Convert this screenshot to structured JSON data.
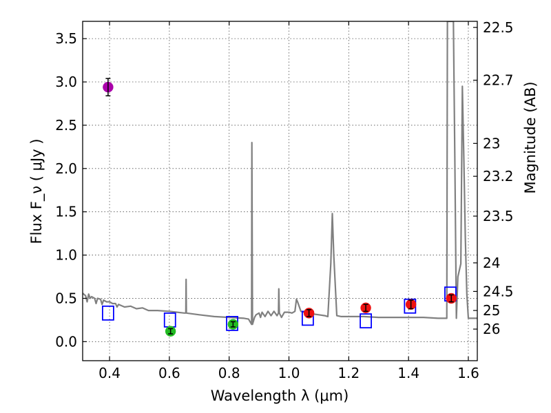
{
  "chart_data": {
    "type": "scatter",
    "title": "",
    "xlabel": "Wavelength  λ (μm)",
    "ylabel": "Flux  F_ν  ( μJy )",
    "y2label": "Magnitude (AB)",
    "xlim": [
      0.31,
      1.63
    ],
    "ylim": [
      -0.22,
      3.7
    ],
    "grid": true,
    "x_ticks": [
      0.4,
      0.6,
      0.8,
      1.0,
      1.2,
      1.4,
      1.6
    ],
    "x_tick_labels": [
      "0.4",
      "0.6",
      "0.8",
      "1.0",
      "1.2",
      "1.4",
      "1.6"
    ],
    "y_ticks": [
      0.0,
      0.5,
      1.0,
      1.5,
      2.0,
      2.5,
      3.0,
      3.5
    ],
    "y_tick_labels": [
      "0.0",
      "0.5",
      "1.0",
      "1.5",
      "2.0",
      "2.5",
      "3.0",
      "3.5"
    ],
    "mag_ticks": [
      {
        "label": "22.5",
        "flux": 3.63
      },
      {
        "label": "22.7",
        "flux": 3.02
      },
      {
        "label": "23",
        "flux": 2.29
      },
      {
        "label": "23.2",
        "flux": 1.91
      },
      {
        "label": "23.5",
        "flux": 1.45
      },
      {
        "label": "24",
        "flux": 0.91
      },
      {
        "label": "24.5",
        "flux": 0.58
      },
      {
        "label": "25",
        "flux": 0.36
      },
      {
        "label": "26",
        "flux": 0.145
      }
    ],
    "series": [
      {
        "name": "model spectrum",
        "kind": "line",
        "color": "#808080",
        "points": [
          [
            0.31,
            0.56
          ],
          [
            0.32,
            0.53
          ],
          [
            0.325,
            0.46
          ],
          [
            0.33,
            0.55
          ],
          [
            0.335,
            0.5
          ],
          [
            0.34,
            0.52
          ],
          [
            0.35,
            0.5
          ],
          [
            0.355,
            0.44
          ],
          [
            0.36,
            0.5
          ],
          [
            0.37,
            0.49
          ],
          [
            0.375,
            0.43
          ],
          [
            0.38,
            0.48
          ],
          [
            0.39,
            0.46
          ],
          [
            0.4,
            0.46
          ],
          [
            0.41,
            0.44
          ],
          [
            0.42,
            0.44
          ],
          [
            0.425,
            0.4
          ],
          [
            0.43,
            0.43
          ],
          [
            0.45,
            0.4
          ],
          [
            0.47,
            0.41
          ],
          [
            0.49,
            0.38
          ],
          [
            0.51,
            0.39
          ],
          [
            0.53,
            0.36
          ],
          [
            0.56,
            0.36
          ],
          [
            0.6,
            0.35
          ],
          [
            0.65,
            0.33
          ],
          [
            0.655,
            0.33
          ],
          [
            0.656,
            0.72
          ],
          [
            0.657,
            0.33
          ],
          [
            0.7,
            0.31
          ],
          [
            0.75,
            0.29
          ],
          [
            0.8,
            0.28
          ],
          [
            0.85,
            0.27
          ],
          [
            0.865,
            0.26
          ],
          [
            0.87,
            0.23
          ],
          [
            0.875,
            0.2
          ],
          [
            0.876,
            2.3
          ],
          [
            0.878,
            0.2
          ],
          [
            0.885,
            0.28
          ],
          [
            0.89,
            0.31
          ],
          [
            0.9,
            0.33
          ],
          [
            0.905,
            0.28
          ],
          [
            0.91,
            0.34
          ],
          [
            0.92,
            0.29
          ],
          [
            0.93,
            0.35
          ],
          [
            0.94,
            0.3
          ],
          [
            0.95,
            0.35
          ],
          [
            0.96,
            0.3
          ],
          [
            0.965,
            0.33
          ],
          [
            0.966,
            0.61
          ],
          [
            0.968,
            0.33
          ],
          [
            0.975,
            0.28
          ],
          [
            0.985,
            0.34
          ],
          [
            1.0,
            0.34
          ],
          [
            1.01,
            0.33
          ],
          [
            1.02,
            0.35
          ],
          [
            1.025,
            0.49
          ],
          [
            1.03,
            0.45
          ],
          [
            1.04,
            0.35
          ],
          [
            1.06,
            0.33
          ],
          [
            1.08,
            0.32
          ],
          [
            1.1,
            0.31
          ],
          [
            1.12,
            0.3
          ],
          [
            1.13,
            0.29
          ],
          [
            1.14,
            0.9
          ],
          [
            1.145,
            1.48
          ],
          [
            1.15,
            1.0
          ],
          [
            1.16,
            0.3
          ],
          [
            1.175,
            0.29
          ],
          [
            1.2,
            0.29
          ],
          [
            1.25,
            0.29
          ],
          [
            1.3,
            0.28
          ],
          [
            1.35,
            0.28
          ],
          [
            1.4,
            0.28
          ],
          [
            1.45,
            0.28
          ],
          [
            1.5,
            0.27
          ],
          [
            1.528,
            0.27
          ],
          [
            1.53,
            3.7
          ],
          [
            1.545,
            3.7
          ],
          [
            1.55,
            3.7
          ],
          [
            1.555,
            2.1
          ],
          [
            1.56,
            0.27
          ],
          [
            1.565,
            0.75
          ],
          [
            1.575,
            0.9
          ],
          [
            1.58,
            2.95
          ],
          [
            1.585,
            2.1
          ],
          [
            1.59,
            1.2
          ],
          [
            1.595,
            0.55
          ],
          [
            1.6,
            0.27
          ],
          [
            1.63,
            0.27
          ]
        ]
      },
      {
        "name": "model photometry",
        "kind": "open-square",
        "color": "#0000ff",
        "points": [
          [
            0.395,
            0.33
          ],
          [
            0.602,
            0.25
          ],
          [
            0.81,
            0.21
          ],
          [
            1.063,
            0.27
          ],
          [
            1.257,
            0.24
          ],
          [
            1.405,
            0.41
          ],
          [
            1.54,
            0.55
          ]
        ]
      },
      {
        "name": "observed (violet)",
        "kind": "filled-circle",
        "color": "#aa00aa",
        "points": [
          {
            "x": 0.395,
            "y": 2.94,
            "err": 0.1
          }
        ]
      },
      {
        "name": "observed (green)",
        "kind": "filled-circle",
        "color": "#22bb22",
        "points": [
          {
            "x": 0.604,
            "y": 0.12,
            "err": 0.03
          },
          {
            "x": 0.813,
            "y": 0.2,
            "err": 0.03
          }
        ]
      },
      {
        "name": "observed (red)",
        "kind": "filled-circle",
        "color": "#ee1111",
        "points": [
          {
            "x": 1.067,
            "y": 0.33,
            "err": 0.04
          },
          {
            "x": 1.257,
            "y": 0.39,
            "err": 0.04
          },
          {
            "x": 1.408,
            "y": 0.43,
            "err": 0.05
          },
          {
            "x": 1.543,
            "y": 0.5,
            "err": 0.04
          }
        ]
      }
    ]
  }
}
